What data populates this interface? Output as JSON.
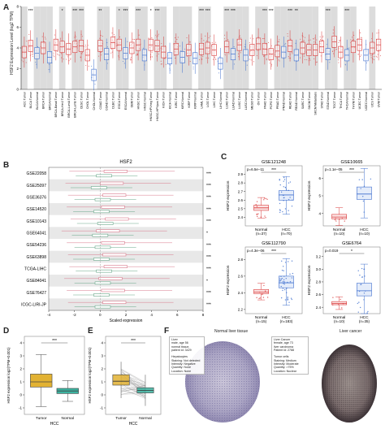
{
  "panels": {
    "a": "A",
    "b": "B",
    "c": "C",
    "d": "D",
    "e": "E",
    "f": "F"
  },
  "colors": {
    "tumor": "#d93a3a",
    "normal": "#3f6fce",
    "shade": "#dcdcdc",
    "d_tumor": "#e2b233",
    "d_normal": "#3bb3a0"
  },
  "chart_data": [
    {
      "id": "A",
      "type": "box",
      "ylabel": "HSF2 Expression Level (log2 TPM)",
      "ylim": [
        0,
        8
      ],
      "yticks": [
        "0",
        "2",
        "4",
        "6",
        "8"
      ],
      "categories": [
        "ACC Tumor",
        "BLCA Tumor",
        "BLCA Normal",
        "BRCA Tumor",
        "BRCA Normal",
        "BRCA-Basal Tumor",
        "BRCA-Her2 Tumor",
        "BRCA-LumA Tumor",
        "BRCA-LumB Tumor",
        "CESC Tumor",
        "CHOL Tumor",
        "CHOL Normal",
        "COAD Tumor",
        "COAD Normal",
        "DLBC Tumor",
        "ESCA Tumor",
        "ESCA Normal",
        "GBM Tumor",
        "HNSC Tumor",
        "HNSC Normal",
        "HNSC-HPVneg Tumor",
        "HNSC-HPVpos Tumor",
        "KICH Tumor",
        "KICH Normal",
        "KIRC Tumor",
        "KIRC Normal",
        "KIRP Tumor",
        "KIRP Normal",
        "LAML Tumor",
        "LGG Tumor",
        "LIHC Tumor",
        "LIHC Normal",
        "LUAD Tumor",
        "LUAD Normal",
        "LUSC Tumor",
        "LUSC Normal",
        "MESO Tumor",
        "OV Tumor",
        "PAAD Tumor",
        "PCPG Tumor",
        "PRAD Tumor",
        "PRAD Normal",
        "READ Tumor",
        "READ Normal",
        "SARC Tumor",
        "SKCM Tumor",
        "SKCM Metastasis",
        "STAD Tumor",
        "STAD Normal",
        "TGCT Tumor",
        "THCA Tumor",
        "THCA Normal",
        "THYM Tumor",
        "UCEC Tumor",
        "UCEC Normal",
        "UCS Tumor",
        "UVM Tumor"
      ],
      "medians": [
        3.6,
        4.2,
        3.5,
        4.0,
        3.1,
        4.3,
        4.1,
        3.9,
        4.1,
        4.2,
        3.3,
        1.4,
        4.2,
        3.4,
        4.5,
        4.3,
        3.5,
        4.0,
        4.3,
        3.3,
        4.3,
        4.2,
        3.6,
        3.0,
        3.9,
        3.1,
        3.8,
        3.0,
        3.9,
        4.0,
        3.8,
        2.5,
        4.1,
        3.4,
        4.3,
        3.3,
        3.8,
        4.4,
        3.9,
        3.4,
        3.7,
        3.6,
        4.2,
        3.3,
        4.0,
        3.8,
        3.8,
        4.1,
        3.4,
        4.6,
        3.6,
        3.3,
        4.1,
        4.3,
        3.3,
        4.0,
        4.3
      ],
      "shaded": [
        1,
        0,
        1,
        1,
        1,
        0,
        1,
        0,
        1,
        1,
        0,
        0,
        1,
        1,
        0,
        1,
        1,
        0,
        1,
        1,
        0,
        1,
        1,
        0,
        1,
        1,
        1,
        0,
        1,
        1,
        0,
        0,
        1,
        1,
        1,
        1,
        0,
        1,
        1,
        0,
        1,
        1,
        1,
        1,
        1,
        1,
        1,
        0,
        1,
        1,
        0,
        1,
        1,
        0,
        0,
        1,
        0
      ],
      "significance": [
        "",
        "***",
        "",
        "",
        "",
        "",
        "*",
        "",
        "***",
        "***",
        "",
        "",
        "**",
        "",
        "",
        "*",
        "***",
        "",
        "***",
        "",
        "*",
        "***",
        "",
        "",
        "",
        "",
        "",
        "",
        "***",
        "***",
        "",
        "",
        "***",
        "***",
        "",
        "",
        "",
        "",
        "***",
        "***",
        "",
        "",
        "***",
        "**",
        "",
        "",
        "",
        "",
        "***",
        "",
        "",
        "***",
        "",
        "",
        "",
        ""
      ],
      "sig_positions": [
        2,
        6,
        9,
        12,
        15,
        17,
        19,
        22,
        24,
        28,
        31,
        38,
        42,
        45,
        48,
        52
      ]
    },
    {
      "id": "B",
      "type": "forest-box",
      "title": "HSF2",
      "xlabel": "Scaled expression",
      "xlim": [
        -4,
        8
      ],
      "xticks": [
        "-4",
        "-2",
        "0",
        "2",
        "4",
        "6",
        "8"
      ],
      "datasets": [
        "GSE22058",
        "GSE25097",
        "GSE36376",
        "GSE14520",
        "GSE10143",
        "GSE64041",
        "GSE54236",
        "GSE63898",
        "TCGA-LIHC",
        "GSE84041",
        "GSE76427",
        "ICGC-LIRI-JP"
      ],
      "significance": [
        "***",
        "***",
        "***",
        "***",
        "***",
        "*",
        "***",
        "***",
        "***",
        "*",
        "***",
        "***"
      ],
      "normal_median": [
        0.3,
        -0.1,
        0.2,
        0.1,
        0.4,
        0.0,
        0.2,
        0.1,
        0.3,
        0.2,
        0.1,
        0.2
      ],
      "tumor_median": [
        1.2,
        0.9,
        1.1,
        1.0,
        1.3,
        0.6,
        1.0,
        1.1,
        1.2,
        0.8,
        1.0,
        1.1
      ]
    },
    {
      "id": "C1",
      "type": "box",
      "title": "GSE121248",
      "pvalue": "p=6.5e−11",
      "sig": "***",
      "ylabel": "HSF2 expression",
      "ylim": [
        2.3,
        3.0
      ],
      "yticks": [
        "2.4",
        "2.5",
        "2.6",
        "2.7",
        "2.8",
        "2.9"
      ],
      "groups": [
        "Normal",
        "HCC"
      ],
      "counts": [
        "(n=37)",
        "(n=70)"
      ],
      "medians": [
        2.51,
        2.66
      ],
      "q1": [
        2.48,
        2.6
      ],
      "q3": [
        2.54,
        2.71
      ]
    },
    {
      "id": "C2",
      "type": "box",
      "title": "GSE10665",
      "pvalue": "p=1.1e−05",
      "sig": "***",
      "ylabel": "HSF2 expression",
      "ylim": [
        3.3,
        6.7
      ],
      "yticks": [
        "4",
        "5",
        "6"
      ],
      "groups": [
        "Normal",
        "HCC"
      ],
      "counts": [
        "(n=10)",
        "(n=10)"
      ],
      "medians": [
        3.8,
        5.1
      ],
      "q1": [
        3.7,
        4.8
      ],
      "q3": [
        3.95,
        5.5
      ]
    },
    {
      "id": "C3",
      "type": "box",
      "title": "GSE112790",
      "pvalue": "p=4.3e−06",
      "sig": "***",
      "ylabel": "HSF2 expression",
      "ylim": [
        2.15,
        2.95
      ],
      "yticks": [
        "2.2",
        "2.4",
        "2.6",
        "2.8"
      ],
      "groups": [
        "Normal",
        "HCC"
      ],
      "counts": [
        "(n=15)",
        "(n=183)"
      ],
      "medians": [
        2.41,
        2.52
      ],
      "q1": [
        2.39,
        2.46
      ],
      "q3": [
        2.44,
        2.6
      ]
    },
    {
      "id": "C4",
      "type": "box",
      "title": "GSE6764",
      "pvalue": "p=0.019",
      "sig": "*",
      "ylabel": "HSF2 expression",
      "ylim": [
        2.3,
        3.35
      ],
      "yticks": [
        "2.4",
        "2.6",
        "2.8",
        "3.0",
        "3.2"
      ],
      "groups": [
        "Normal",
        "HCC"
      ],
      "counts": [
        "(n=10)",
        "(n=35)"
      ],
      "medians": [
        2.46,
        2.66
      ],
      "q1": [
        2.44,
        2.58
      ],
      "q3": [
        2.49,
        2.78
      ]
    },
    {
      "id": "D",
      "type": "box",
      "sig": "***",
      "ylabel": "HSF2 expression log2(TPM+0.001)",
      "ylim": [
        -1.5,
        4.5
      ],
      "yticks": [
        "-1",
        "0",
        "1",
        "2",
        "3",
        "4"
      ],
      "groups": [
        "Tumor",
        "Normal"
      ],
      "xlabel": "HCC",
      "medians": [
        1.0,
        0.3
      ],
      "q1": [
        0.6,
        0.1
      ],
      "q3": [
        1.6,
        0.5
      ]
    },
    {
      "id": "E",
      "type": "paired",
      "sig": "***",
      "ylabel": "HSF2 expression log2(TPM+0.001)",
      "ylim": [
        -1.5,
        4.5
      ],
      "yticks": [
        "-1",
        "0",
        "1",
        "2",
        "3",
        "4"
      ],
      "groups": [
        "Tumor",
        "Normal"
      ],
      "xlabel": "HCC",
      "medians": [
        1.05,
        0.35
      ],
      "q1": [
        0.75,
        0.15
      ],
      "q3": [
        1.55,
        0.55
      ]
    }
  ],
  "tissue": {
    "normal_title": "Normal liver tissue",
    "cancer_title": "Liver cancer",
    "normal_info": [
      "Liver",
      "male, age 56",
      "normal tissue,",
      "patient id: 3429",
      "",
      "Hepatocytes",
      "Staining: Not detected",
      "Intensity: Negative",
      "Quantity: None",
      "Location: None"
    ],
    "cancer_info": [
      "Liver Cancer",
      "female, age 73",
      "liver carcinoma",
      "Patient id: 2788",
      "",
      "Tumor cells",
      "Staining: Medium",
      "Intensity: Moderate",
      "Quantity: >75%",
      "Location: Nuclear"
    ]
  }
}
